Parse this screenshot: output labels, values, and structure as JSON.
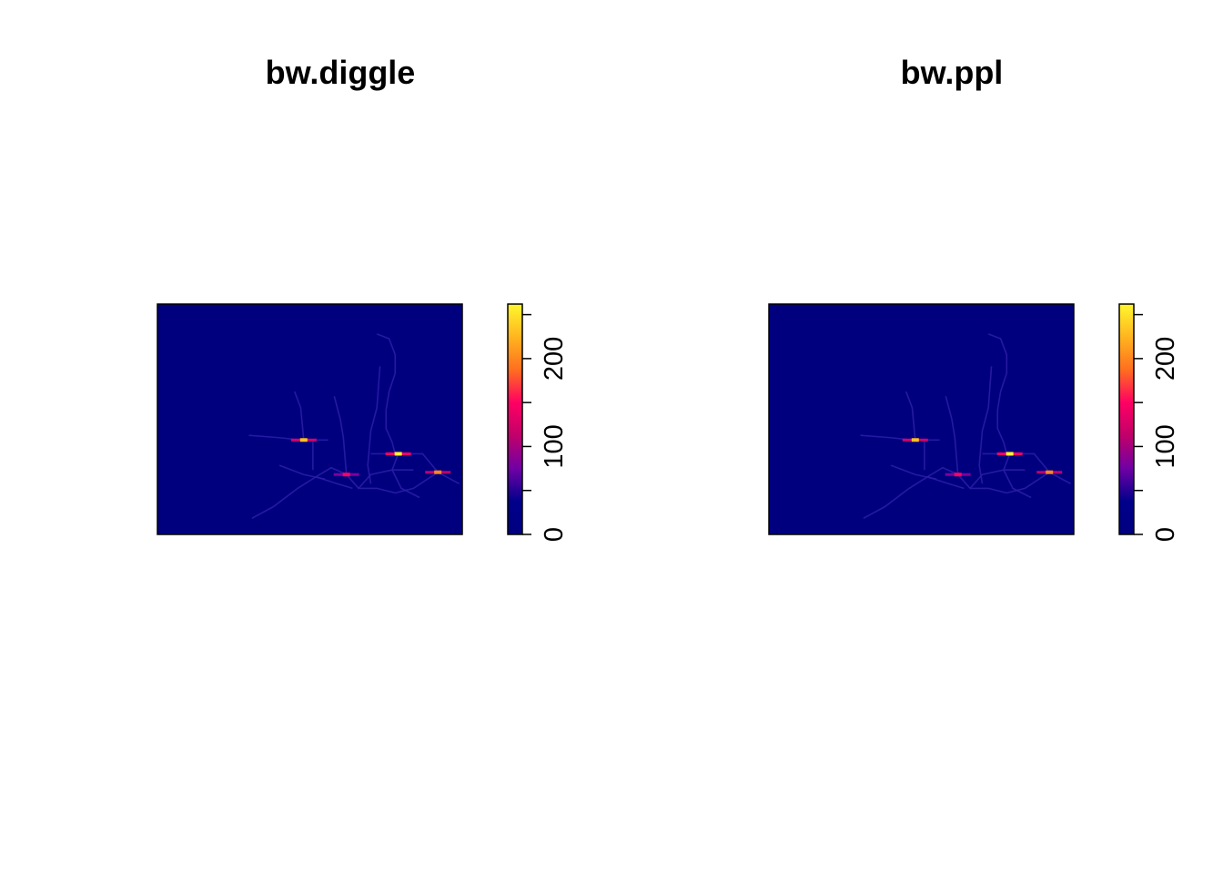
{
  "chart_data": [
    {
      "type": "heatmap",
      "title": "bw.diggle",
      "xlabel": "",
      "ylabel": "",
      "colorbar": {
        "range": [
          0,
          262
        ],
        "ticks": [
          0,
          50,
          100,
          150,
          200,
          250
        ],
        "tick_labels": [
          "0",
          "",
          "100",
          "",
          "200",
          ""
        ],
        "colors": [
          "#00007F",
          "#00008B",
          "#7000A5",
          "#C0006A",
          "#FF0063",
          "#FF6E1F",
          "#FFB51F",
          "#FFF72E"
        ]
      },
      "background_value": 0,
      "hotspots": [
        {
          "x": 0.48,
          "y": 0.41,
          "value": 230
        },
        {
          "x": 0.79,
          "y": 0.35,
          "value": 262
        },
        {
          "x": 0.62,
          "y": 0.26,
          "value": 150
        },
        {
          "x": 0.92,
          "y": 0.27,
          "value": 200
        }
      ]
    },
    {
      "type": "heatmap",
      "title": "bw.ppl",
      "xlabel": "",
      "ylabel": "",
      "colorbar": {
        "range": [
          0,
          262
        ],
        "ticks": [
          0,
          50,
          100,
          150,
          200,
          250
        ],
        "tick_labels": [
          "0",
          "",
          "100",
          "",
          "200",
          ""
        ],
        "colors": [
          "#00007F",
          "#00008B",
          "#7000A5",
          "#C0006A",
          "#FF0063",
          "#FF6E1F",
          "#FFB51F",
          "#FFF72E"
        ]
      },
      "background_value": 0,
      "hotspots": [
        {
          "x": 0.48,
          "y": 0.41,
          "value": 230
        },
        {
          "x": 0.79,
          "y": 0.35,
          "value": 262
        },
        {
          "x": 0.62,
          "y": 0.26,
          "value": 150
        },
        {
          "x": 0.92,
          "y": 0.27,
          "value": 200
        }
      ]
    }
  ]
}
